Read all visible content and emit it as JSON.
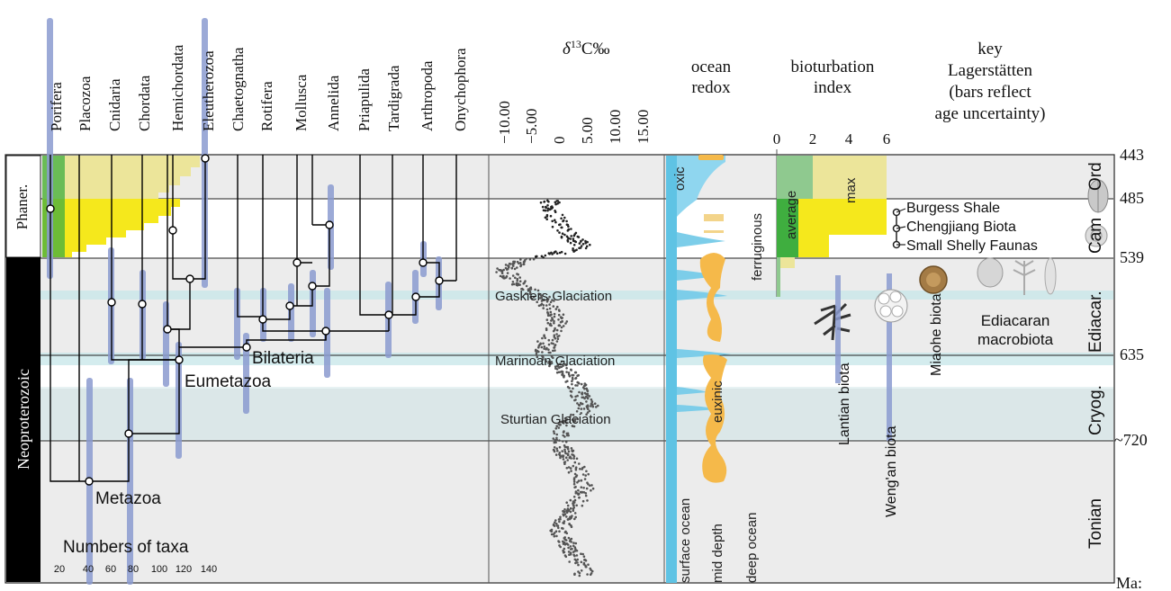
{
  "taxa": [
    "Porifera",
    "Placozoa",
    "Cnidaria",
    "Chordata",
    "Hemichordata",
    "Eleutherozoa",
    "Chaetognatha",
    "Rotifera",
    "Mollusca",
    "Annelida",
    "Priapulida",
    "Tardigrada",
    "Arthropoda",
    "Onychophora"
  ],
  "clade_labels": {
    "bilateria": "Bilateria",
    "eumetazoa": "Eumetazoa",
    "metazoa": "Metazoa"
  },
  "carbon": {
    "title_delta": "δ",
    "title_sup": "13",
    "title_rest": "C‰",
    "ticks": [
      "−10.00",
      "−5.00",
      "0",
      "5.00",
      "10.00",
      "15.00"
    ]
  },
  "glaciations": [
    "Gaskiers Glaciation",
    "Marinoan Glaciation",
    "Sturtian Glaciation"
  ],
  "redox": {
    "title_lines": [
      "ocean",
      "redox"
    ],
    "states": [
      "oxic",
      "ferruginous",
      "euxinic"
    ],
    "depths": [
      "surface ocean",
      "mid depth",
      "deep ocean"
    ]
  },
  "bioturbation": {
    "title_lines": [
      "bioturbation",
      "index"
    ],
    "ticks": [
      "0",
      "2",
      "4",
      "6"
    ],
    "labels": [
      "average",
      "max"
    ]
  },
  "lagerstatten": {
    "title_lines": [
      "key",
      "Lagerstätten",
      "(bars reflect",
      "age uncertainty)"
    ],
    "items": [
      "Burgess Shale",
      "Chengjiang Biota",
      "Small Shelly Faunas"
    ],
    "biotas": [
      "Lantian biota",
      "Weng'an biota",
      "Miaohe biota"
    ],
    "macrobiota_lines": [
      "Ediacaran",
      "macrobiota"
    ]
  },
  "periods": [
    "Ord",
    "Cam",
    "Ediacar.",
    "Cryog.",
    "Tonian"
  ],
  "eras": [
    "Phaner.",
    "Neoproterozoic"
  ],
  "ages": [
    "443",
    "485",
    "539",
    "635",
    "~720",
    "Ma:"
  ],
  "taxa_axis": {
    "label": "Numbers of taxa",
    "ticks": [
      "20",
      "40",
      "60",
      "80",
      "100",
      "120",
      "140"
    ]
  },
  "colors": {
    "bar": "#8b9bd0",
    "yellow": "#f5e81c",
    "pale_yellow": "#ece59a",
    "green": "#3fae3f",
    "blue": "#5fc3e4",
    "orange": "#f5b94a",
    "band": "#ececec"
  }
}
